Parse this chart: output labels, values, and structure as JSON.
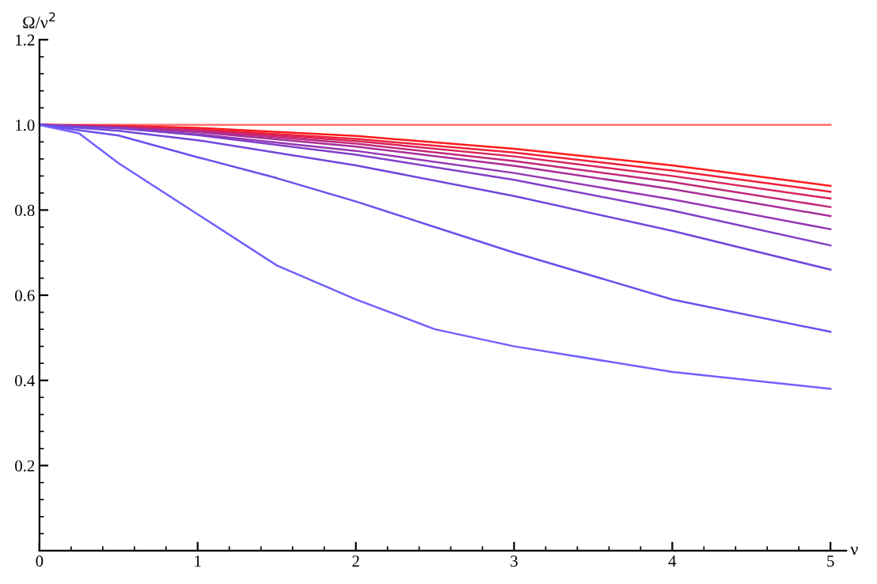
{
  "chart_data": {
    "type": "line",
    "xlabel": "ν",
    "ylabel": "Ω/ν$^{2}$",
    "xlim": [
      0,
      5.1
    ],
    "ylim": [
      0,
      1.2
    ],
    "xticks": [
      0,
      1,
      2,
      3,
      4,
      5
    ],
    "yticks": [
      0.2,
      0.4,
      0.6,
      0.8,
      {
        "value": 1,
        "label": "1.0"
      },
      1.2
    ],
    "grid": false,
    "legend": false,
    "marker": "none",
    "line_style": "solid",
    "series": [
      {
        "color": "#ff7070",
        "x": [
          0,
          5
        ],
        "values": [
          1.0,
          1.0
        ]
      },
      {
        "color": "#ff1a1a",
        "x": [
          0,
          0.5,
          1,
          2,
          3,
          4,
          5
        ],
        "values": [
          1.0,
          0.998,
          0.993,
          0.974,
          0.944,
          0.905,
          0.857
        ]
      },
      {
        "color": "#f0203a",
        "x": [
          0,
          0.5,
          1,
          2,
          3,
          4,
          5
        ],
        "values": [
          1.0,
          0.997,
          0.99,
          0.967,
          0.935,
          0.893,
          0.843
        ]
      },
      {
        "color": "#d8225a",
        "x": [
          0,
          0.5,
          1,
          2,
          3,
          4,
          5
        ],
        "values": [
          1.0,
          0.996,
          0.988,
          0.962,
          0.926,
          0.88,
          0.827
        ]
      },
      {
        "color": "#c0287a",
        "x": [
          0,
          0.5,
          1,
          2,
          3,
          4,
          5
        ],
        "values": [
          1.0,
          0.995,
          0.986,
          0.956,
          0.915,
          0.866,
          0.807
        ]
      },
      {
        "color": "#a82e98",
        "x": [
          0,
          0.5,
          1,
          2,
          3,
          4,
          5
        ],
        "values": [
          1.0,
          0.994,
          0.983,
          0.949,
          0.904,
          0.849,
          0.786
        ]
      },
      {
        "color": "#9436b4",
        "x": [
          0,
          0.5,
          1,
          2,
          3,
          4,
          5
        ],
        "values": [
          1.0,
          0.992,
          0.978,
          0.939,
          0.887,
          0.825,
          0.755
        ]
      },
      {
        "color": "#8040c8",
        "x": [
          0,
          0.5,
          1,
          2,
          3,
          4,
          5
        ],
        "values": [
          1.0,
          0.992,
          0.976,
          0.93,
          0.871,
          0.799,
          0.717
        ]
      },
      {
        "color": "#7048dc",
        "x": [
          0,
          0.5,
          1,
          2,
          3,
          4,
          5
        ],
        "values": [
          1.0,
          0.986,
          0.964,
          0.905,
          0.833,
          0.751,
          0.66
        ]
      },
      {
        "color": "#6a50ee",
        "x": [
          0,
          0.5,
          1,
          1.5,
          2,
          2.5,
          3,
          4,
          5
        ],
        "values": [
          1.0,
          0.975,
          0.924,
          0.875,
          0.82,
          0.76,
          0.7,
          0.59,
          0.514
        ]
      },
      {
        "color": "#7060ff",
        "x": [
          0,
          0.25,
          0.5,
          1,
          1.5,
          2,
          2.5,
          3,
          4,
          5
        ],
        "values": [
          1.0,
          0.98,
          0.91,
          0.79,
          0.67,
          0.59,
          0.52,
          0.48,
          0.42,
          0.38
        ]
      }
    ]
  }
}
